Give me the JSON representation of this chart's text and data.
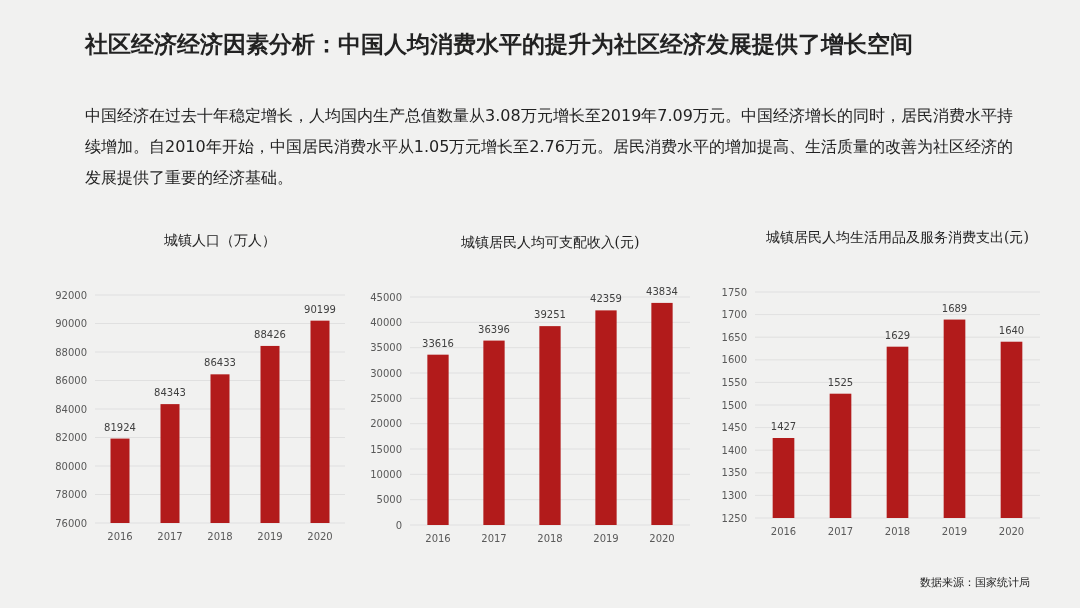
{
  "chart_data": [
    {
      "type": "other",
      "title": "社区经济经济因素分析：中国人均消费水平的提升为社区经济发展提供了增长空间",
      "subtitle": "中国经济在过去十年稳定增长，人均国内生产总值数量从3.08万元增长至2019年7.09万元。中国经济增长的同时，居民消费水平持续增加。自2010年开始，中国居民消费水平从1.05万元增长至2.76万元。居民消费水平的增加提高、生活质量的改善为社区经济的发展提供了重要的经济基础。"
    },
    {
      "type": "bar",
      "title": "城镇人口（万人）",
      "categories": [
        "2016",
        "2017",
        "2018",
        "2019",
        "2020"
      ],
      "values": [
        81924,
        84343,
        86433,
        88426,
        90199
      ],
      "color": "#b21b1b",
      "ylim": [
        76000,
        92000
      ],
      "yticks": [
        76000,
        78000,
        80000,
        82000,
        84000,
        86000,
        88000,
        90000,
        92000
      ],
      "grid": "y",
      "data_labels": true
    },
    {
      "type": "bar",
      "title": "城镇居民人均可支配收入(元)",
      "categories": [
        "2016",
        "2017",
        "2018",
        "2019",
        "2020"
      ],
      "values": [
        33616,
        36396,
        39251,
        42359,
        43834
      ],
      "color": "#b21b1b",
      "ylim": [
        0,
        45000
      ],
      "yticks": [
        0,
        5000,
        10000,
        15000,
        20000,
        25000,
        30000,
        35000,
        40000,
        45000
      ],
      "grid": "y",
      "data_labels": true
    },
    {
      "type": "bar",
      "title": "城镇居民人均生活用品及服务消费支出(元)",
      "categories": [
        "2016",
        "2017",
        "2018",
        "2019",
        "2020"
      ],
      "values": [
        1427,
        1525,
        1629,
        1689,
        1640
      ],
      "color": "#b21b1b",
      "ylim": [
        1250,
        1750
      ],
      "yticks": [
        1250,
        1300,
        1350,
        1400,
        1450,
        1500,
        1550,
        1600,
        1650,
        1700,
        1750
      ],
      "grid": "y",
      "data_labels": true,
      "annotations": [
        "数据来源：国家统计局"
      ]
    }
  ]
}
